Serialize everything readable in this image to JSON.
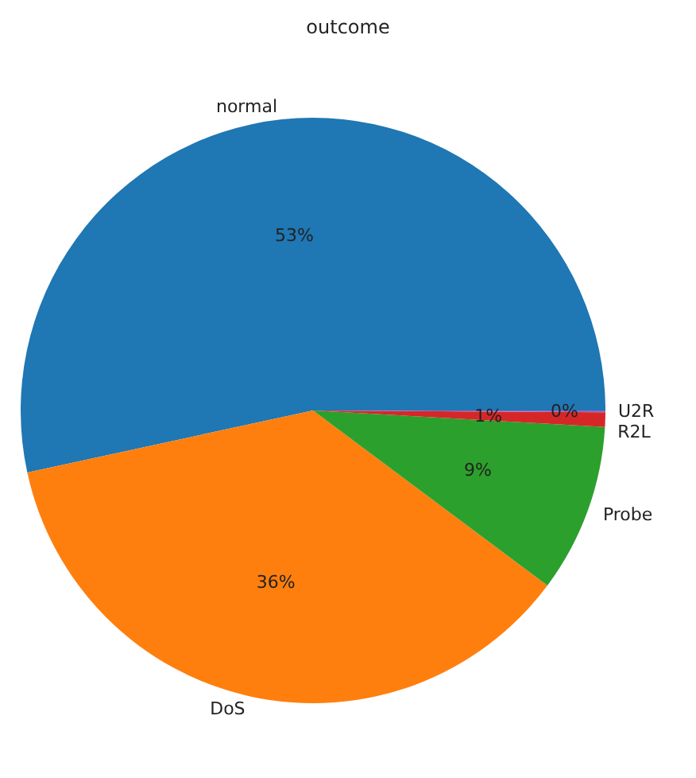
{
  "chart_data": {
    "type": "pie",
    "title": "outcome",
    "categories": [
      "normal",
      "DoS",
      "Probe",
      "R2L",
      "U2R"
    ],
    "values": [
      53.4,
      36.4,
      9.3,
      0.8,
      0.1
    ],
    "colors": [
      "#1f77b4",
      "#ff7f0e",
      "#2ca02c",
      "#d62728",
      "#9467bd"
    ],
    "value_labels": [
      "53%",
      "36%",
      "9%",
      "1%",
      "0%"
    ],
    "legend": false
  }
}
